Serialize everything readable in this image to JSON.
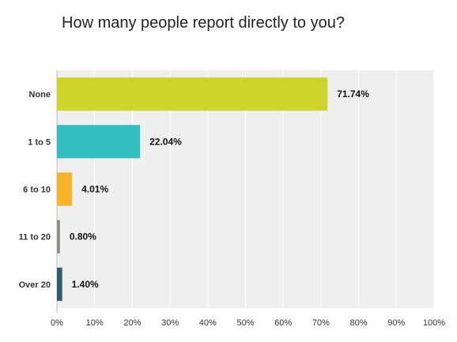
{
  "chart_data": {
    "type": "bar",
    "orientation": "horizontal",
    "title": "How many people report directly to you?",
    "categories": [
      "None",
      "1 to 5",
      "6 to 10",
      "11 to 20",
      "Over 20"
    ],
    "values": [
      71.74,
      22.04,
      4.01,
      0.8,
      1.4
    ],
    "value_labels": [
      "71.74%",
      "22.04%",
      "4.01%",
      "0.80%",
      "1.40%"
    ],
    "bar_colors": [
      "#cdd42a",
      "#33bfbf",
      "#f7b42a",
      "#8c8c84",
      "#2e5f6e"
    ],
    "xlim": [
      0,
      100
    ],
    "x_ticks": [
      "0%",
      "10%",
      "20%",
      "30%",
      "40%",
      "50%",
      "60%",
      "70%",
      "80%",
      "90%",
      "100%"
    ],
    "grid": true,
    "xlabel": "",
    "ylabel": ""
  }
}
